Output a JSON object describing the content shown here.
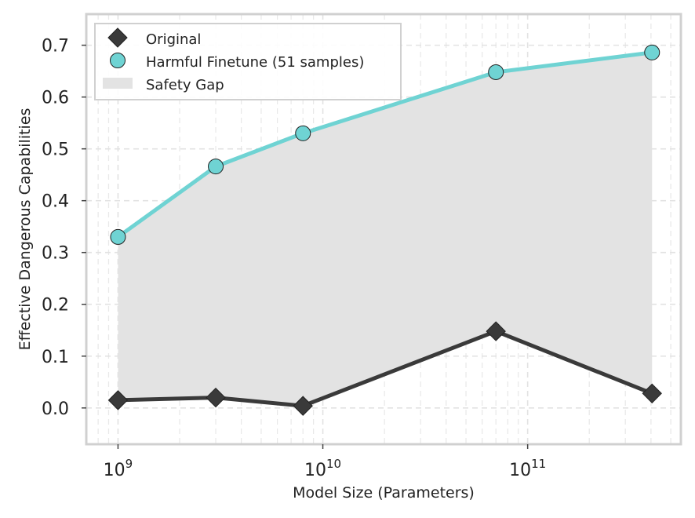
{
  "chart_data": {
    "type": "line",
    "title": "",
    "xlabel": "Model Size (Parameters)",
    "ylabel": "Effective Dangerous Capabilities",
    "xscale": "log",
    "xlim": [
      700000000,
      560000000000
    ],
    "ylim": [
      -0.07,
      0.76
    ],
    "grid": true,
    "legend_position": "top-left",
    "x": [
      1000000000,
      3000000000,
      8000000000,
      70000000000,
      405000000000
    ],
    "x_ticks": [
      {
        "value": 1000000000,
        "base": "10",
        "exp": "9"
      },
      {
        "value": 10000000000,
        "base": "10",
        "exp": "10"
      },
      {
        "value": 100000000000,
        "base": "10",
        "exp": "11"
      }
    ],
    "y_ticks": [
      {
        "value": 0.0,
        "label": "0.0"
      },
      {
        "value": 0.1,
        "label": "0.1"
      },
      {
        "value": 0.2,
        "label": "0.2"
      },
      {
        "value": 0.3,
        "label": "0.3"
      },
      {
        "value": 0.4,
        "label": "0.4"
      },
      {
        "value": 0.5,
        "label": "0.5"
      },
      {
        "value": 0.6,
        "label": "0.6"
      },
      {
        "value": 0.7,
        "label": "0.7"
      }
    ],
    "series": [
      {
        "name": "Original",
        "marker": "diamond",
        "color": "#3a3a3a",
        "values": [
          0.015,
          0.02,
          0.004,
          0.148,
          0.028
        ]
      },
      {
        "name": "Harmful Finetune (51 samples)",
        "marker": "circle",
        "color": "#6fd3d3",
        "values": [
          0.33,
          0.466,
          0.53,
          0.648,
          0.686
        ]
      }
    ],
    "fill_between": {
      "name": "Safety Gap",
      "color": "#e3e3e3"
    }
  }
}
